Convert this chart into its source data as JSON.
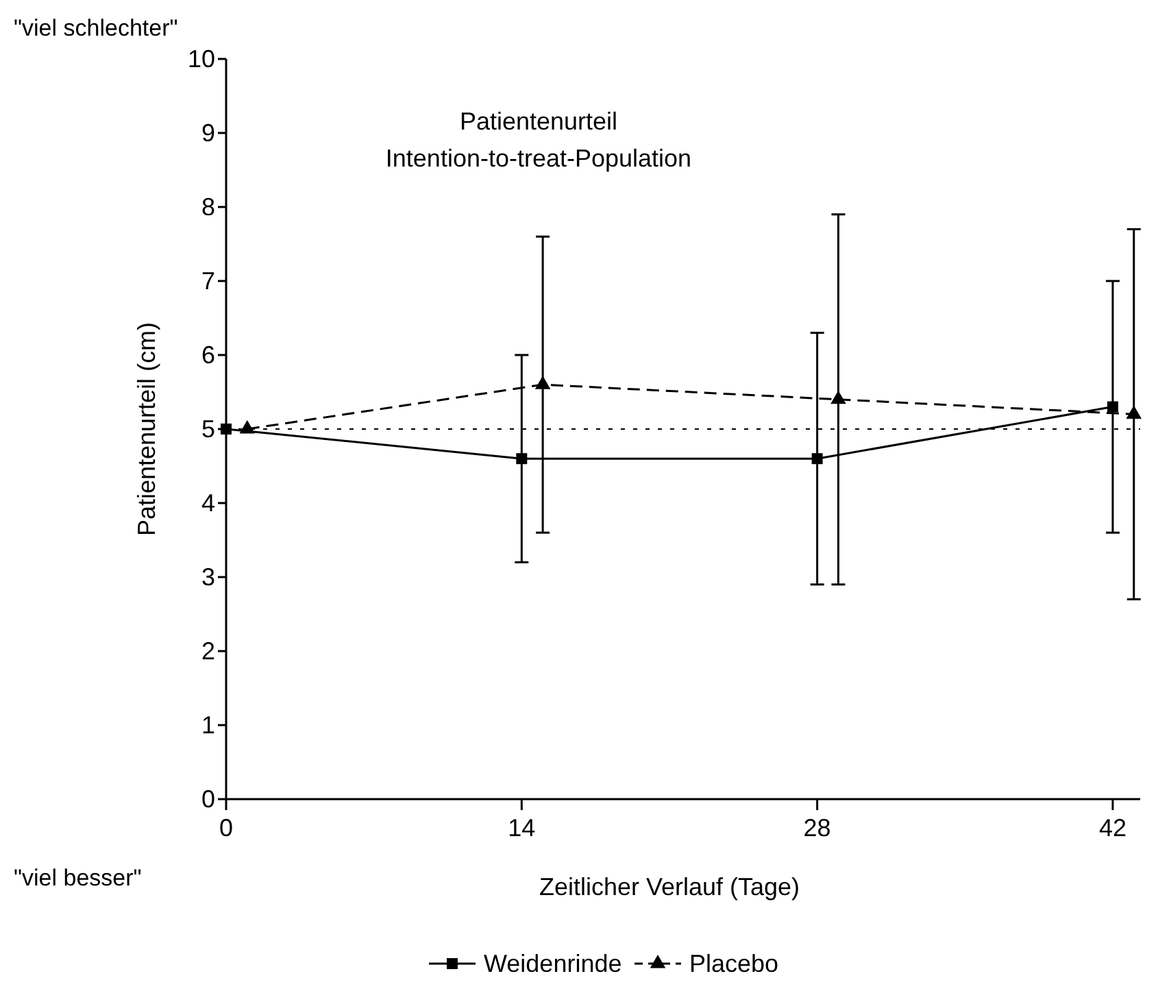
{
  "chart_data": {
    "type": "line",
    "title": "Patientenurteil",
    "subtitle": "Intention-to-treat-Population",
    "xlabel": "Zeitlicher Verlauf (Tage)",
    "ylabel": "Patientenurteil (cm)",
    "annotations": [
      "\"viel schlechter\"",
      "\"viel besser\""
    ],
    "xlim": [
      0,
      43.3
    ],
    "xticks": [
      0,
      14,
      28,
      42
    ],
    "ylim": [
      0,
      10
    ],
    "yticks": [
      0,
      1,
      2,
      3,
      4,
      5,
      6,
      7,
      8,
      9,
      10
    ],
    "series": [
      {
        "name": "Weidenrinde",
        "color": "#000000",
        "x": [
          0,
          14,
          28,
          42
        ],
        "values": [
          5,
          4.6,
          4.6,
          5.3
        ],
        "errors": [
          null,
          [
            3.2,
            6.0
          ],
          [
            2.9,
            6.3
          ],
          [
            3.6,
            7.0
          ]
        ],
        "marker": "square",
        "line_style": "solid"
      },
      {
        "name": "Placebo",
        "color": "#000000",
        "x": [
          1,
          15,
          29,
          43
        ],
        "values": [
          5,
          5.6,
          5.4,
          5.2
        ],
        "errors": [
          null,
          [
            3.6,
            7.6
          ],
          [
            2.9,
            7.9
          ],
          [
            2.7,
            7.7
          ]
        ],
        "marker": "triangle",
        "line_style": "dashed"
      }
    ],
    "ref_lines": [
      {
        "axis": "y",
        "value": 5,
        "line_style": "dotted",
        "color": "#000000"
      }
    ],
    "grid": false,
    "legend": "bottom"
  }
}
